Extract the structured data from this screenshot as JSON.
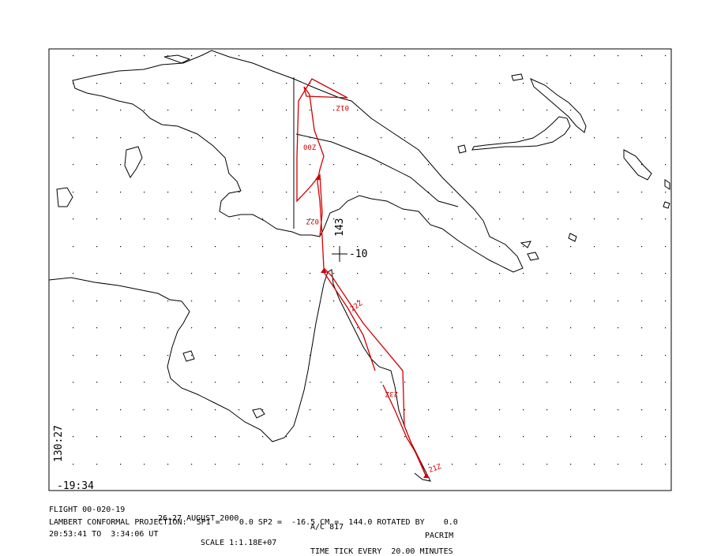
{
  "colors": {
    "track": "#d00000",
    "coast": "#000000",
    "frame": "#000000",
    "background": "#ffffff"
  },
  "map_labels": {
    "center_lat": "-10",
    "center_lon": "143",
    "corner_lon": "130:27",
    "corner_lat": "-19:34"
  },
  "track_labels": [
    "01Z",
    "00Z",
    "02Z",
    "22Z",
    "23Z",
    "21Z"
  ],
  "footer": {
    "line1": {
      "flight": "FLIGHT 00-020-19",
      "date": "26-27 AUGUST 2000",
      "aircraft": "A/C 817",
      "project": "PACRIM"
    },
    "line2": {
      "projection": "LAMBERT CONFORMAL PROJECTION:  SP1 =    0.0 SP2 =  -16.5 CM =  144.0 ROTATED BY    0.0"
    },
    "line3": {
      "time_range": "20:53:41 TO  3:34:06 UT",
      "scale": "SCALE 1:1.18E+07",
      "tick": "TIME TICK EVERY  20.00 MINUTES"
    }
  }
}
